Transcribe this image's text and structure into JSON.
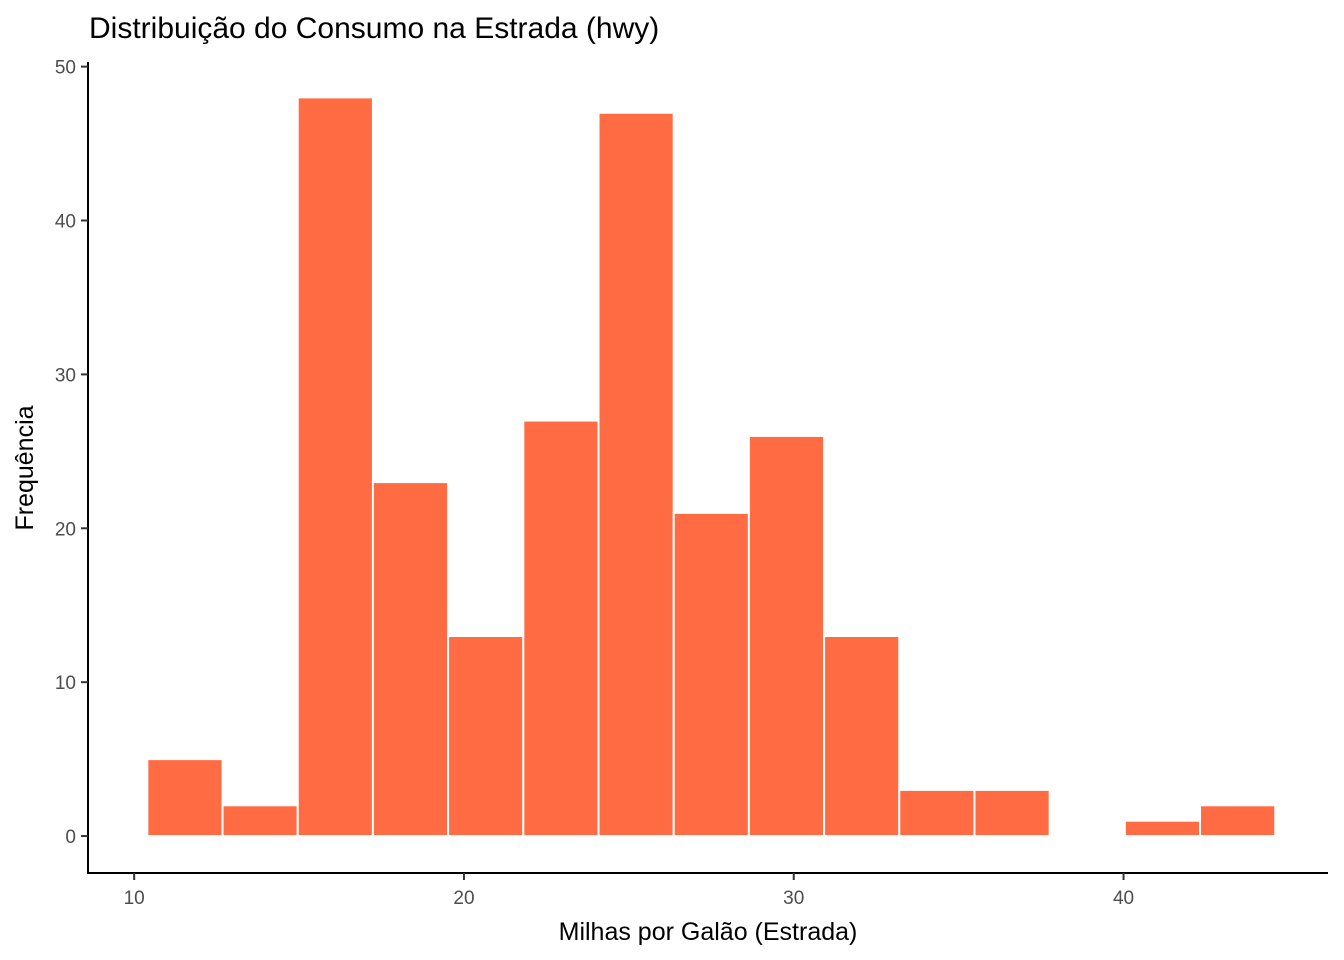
{
  "chart_data": {
    "type": "bar",
    "title": "Distribuição do Consumo na Estrada (hwy)",
    "xlabel": "Milhas por Galão (Estrada)",
    "ylabel": "Frequência",
    "xlim": [
      8.6,
      46.2
    ],
    "ylim": [
      -2.4,
      50.3
    ],
    "x_ticks": [
      10,
      20,
      30,
      40
    ],
    "y_ticks": [
      0,
      10,
      20,
      30,
      40,
      50
    ],
    "bin_width": 2.28,
    "bins": [
      {
        "start": 10.4,
        "end": 12.68,
        "count": 5
      },
      {
        "start": 12.68,
        "end": 14.96,
        "count": 2
      },
      {
        "start": 14.96,
        "end": 17.24,
        "count": 48
      },
      {
        "start": 17.24,
        "end": 19.52,
        "count": 23
      },
      {
        "start": 19.52,
        "end": 21.8,
        "count": 13
      },
      {
        "start": 21.8,
        "end": 24.08,
        "count": 27
      },
      {
        "start": 24.08,
        "end": 26.36,
        "count": 47
      },
      {
        "start": 26.36,
        "end": 28.64,
        "count": 21
      },
      {
        "start": 28.64,
        "end": 30.92,
        "count": 26
      },
      {
        "start": 30.92,
        "end": 33.2,
        "count": 13
      },
      {
        "start": 33.2,
        "end": 35.48,
        "count": 3
      },
      {
        "start": 35.48,
        "end": 37.76,
        "count": 3
      },
      {
        "start": 37.76,
        "end": 40.04,
        "count": 0
      },
      {
        "start": 40.04,
        "end": 42.32,
        "count": 1
      },
      {
        "start": 42.32,
        "end": 44.6,
        "count": 2
      }
    ],
    "grid": false,
    "legend": "none",
    "bar_color": "#FF6B42",
    "bar_border_color": "#FFFFFF"
  }
}
